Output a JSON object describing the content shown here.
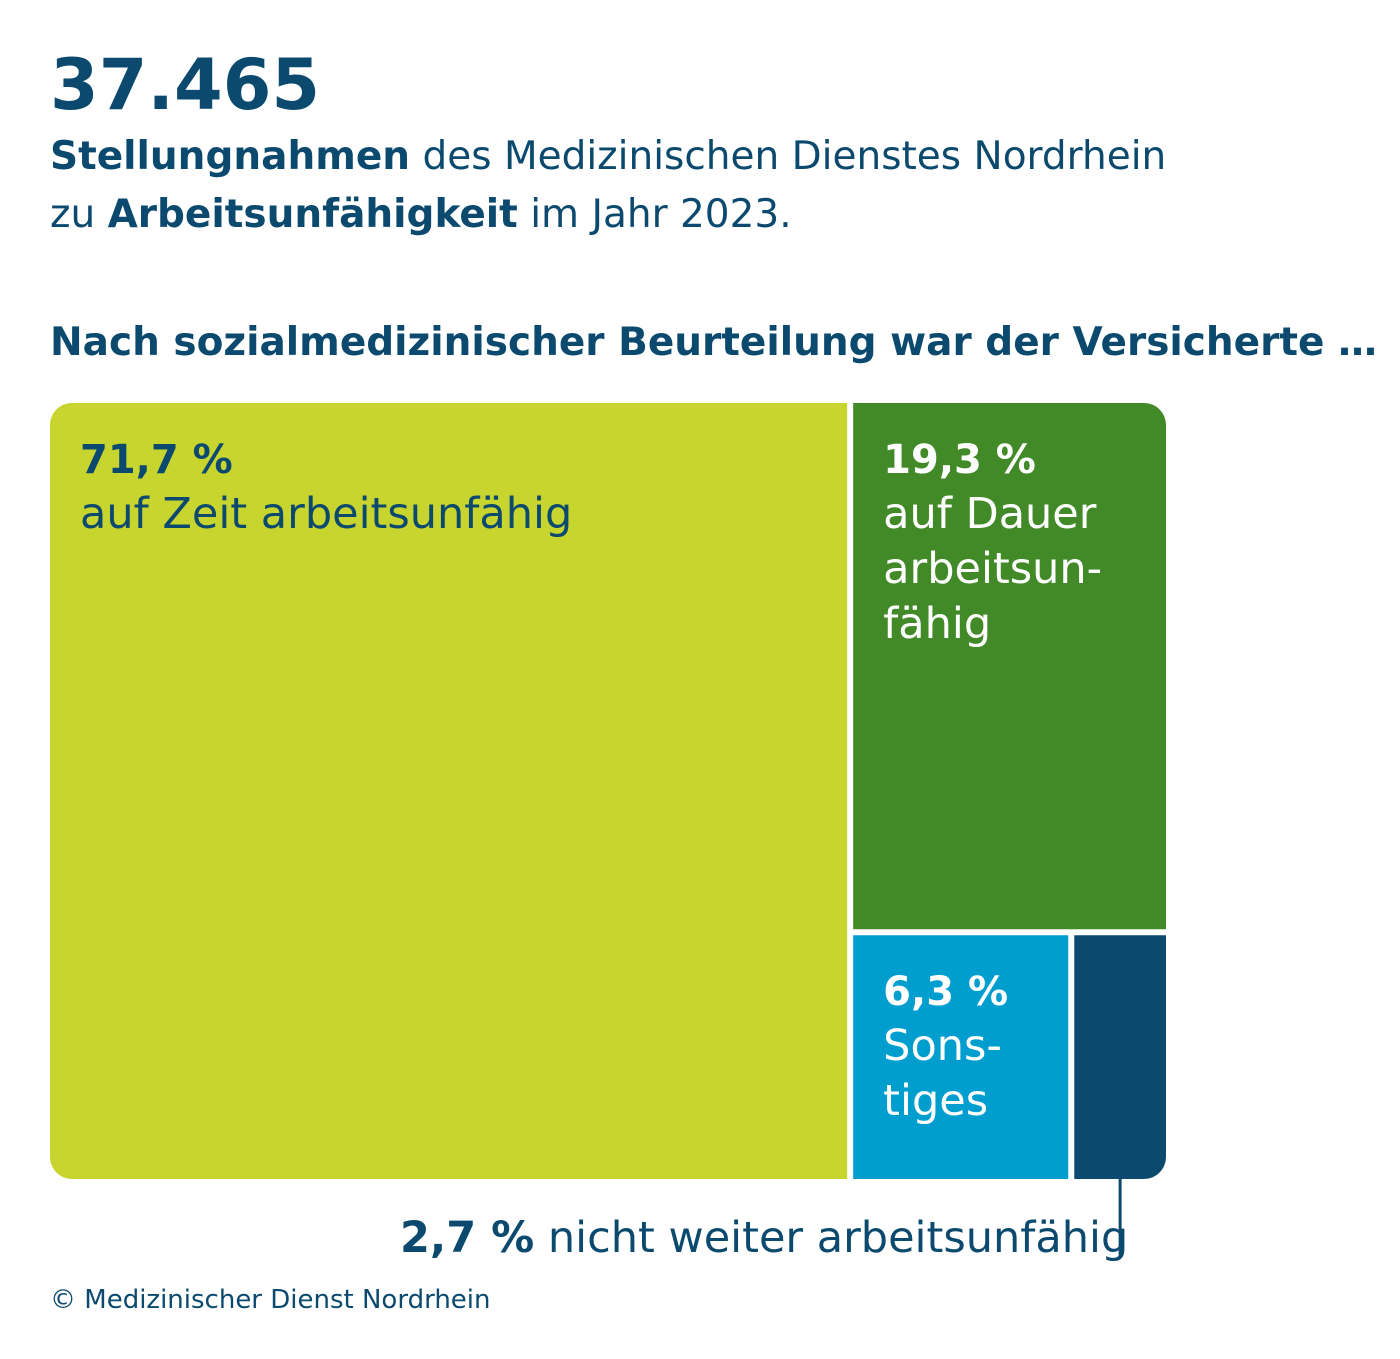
{
  "header": {
    "total": "37.465",
    "line1_bold": "Stellungnahmen",
    "line1_rest": " des Medizinischen Dienstes Nordrhein",
    "line2_pre": "zu ",
    "line2_bold": "Arbeitsunfähigkeit",
    "line2_rest": " im Jahr 2023."
  },
  "subtitle": "Nach sozialmedizinischer Beurteilung war der Versicherte …",
  "chart_data": {
    "type": "treemap",
    "unit": "%",
    "segments": [
      {
        "value": 71.7,
        "value_label": "71,7 %",
        "label_lines": [
          "auf Zeit arbeitsunfähig"
        ],
        "color": "#c8d52e",
        "text_color": "#0b4a6e"
      },
      {
        "value": 19.3,
        "value_label": "19,3 %",
        "label_lines": [
          "auf Dauer",
          "arbeitsun-",
          "fähig"
        ],
        "color": "#428a27",
        "text_color": "#ffffff"
      },
      {
        "value": 6.3,
        "value_label": "6,3 %",
        "label_lines": [
          "Sons-",
          "tiges"
        ],
        "color": "#009ecf",
        "text_color": "#ffffff"
      },
      {
        "value": 2.7,
        "value_label": "2,7 %",
        "label_lines": [
          " nicht weiter arbeitsunfähig"
        ],
        "color": "#0b4a6e",
        "text_color": "#0b4a6e",
        "external_label": true
      }
    ]
  },
  "callout": {
    "value": "2,7 %",
    "text": " nicht weiter arbeitsunfähig"
  },
  "credit": "© Medizinischer Dienst Nordrhein",
  "colors": {
    "text": "#0b4a6e",
    "lime": "#c8d52e",
    "green": "#428a27",
    "cyan": "#009ecf",
    "navy": "#0b4a6e"
  }
}
